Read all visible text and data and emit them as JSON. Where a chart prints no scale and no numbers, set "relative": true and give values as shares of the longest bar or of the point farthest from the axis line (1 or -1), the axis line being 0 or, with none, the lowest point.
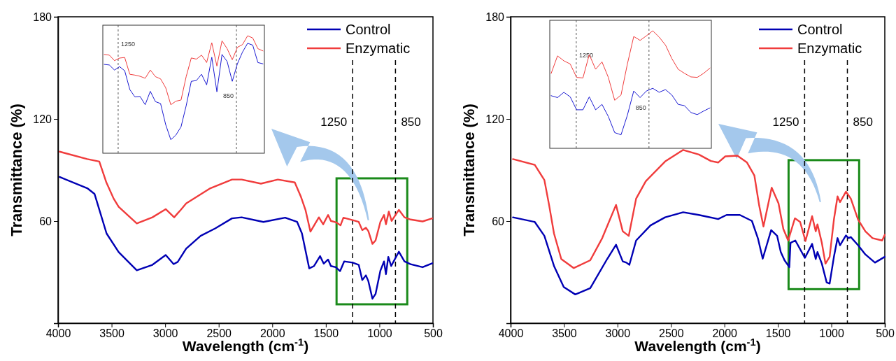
{
  "chart_data": [
    {
      "type": "line",
      "xlabel": "Wavelength (cm$^{-1}$)",
      "ylabel": "Transmittance (%)",
      "xlim": [
        4000,
        500
      ],
      "xticks": [
        4000,
        3500,
        3000,
        2500,
        2000,
        1500,
        1000,
        500
      ],
      "ylim": [
        0,
        180
      ],
      "yticks": [
        60,
        120,
        180
      ],
      "legend": "top right",
      "ref_lines": [
        {
          "axis": "x",
          "value": 1250,
          "label": "1250",
          "line_style": "dashed",
          "color": "#000000"
        },
        {
          "axis": "x",
          "value": 850,
          "label": "850",
          "line_style": "dashed",
          "color": "#000000"
        }
      ],
      "series": [
        {
          "name": "Control",
          "color": "#0000b4",
          "x": [
            3986,
            3727,
            3659,
            3547,
            3434,
            3265,
            3119,
            2995,
            2921,
            2883,
            2804,
            2669,
            2533,
            2376,
            2286,
            2083,
            1880,
            1768,
            1723,
            1655,
            1610,
            1554,
            1520,
            1479,
            1453,
            1408,
            1367,
            1329,
            1250,
            1193,
            1160,
            1126,
            1103,
            1065,
            1036,
            991,
            957,
            939,
            917,
            890,
            867,
            818,
            766,
            709,
            597,
            507
          ],
          "values": [
            85.9,
            79.3,
            75.9,
            52.7,
            41.8,
            31.1,
            34.3,
            40.1,
            34.7,
            36.0,
            43.8,
            51.3,
            55.7,
            61.6,
            62.2,
            59.5,
            62.0,
            59.5,
            52.7,
            32.2,
            33.6,
            39.4,
            35.0,
            37.4,
            33.6,
            32.9,
            30.6,
            36.3,
            35.6,
            34.3,
            25.4,
            28.1,
            24.7,
            14.4,
            17.2,
            30.8,
            36.3,
            28.8,
            39.0,
            33.6,
            36.3,
            42.0,
            36.3,
            34.7,
            32.9,
            35.2
          ]
        },
        {
          "name": "Enzymatic",
          "color": "#f03c3c",
          "x": [
            3986,
            3727,
            3615,
            3549,
            3481,
            3434,
            3265,
            3119,
            2995,
            2916,
            2849,
            2804,
            2578,
            2376,
            2286,
            2106,
            1948,
            1790,
            1734,
            1689,
            1644,
            1565,
            1525,
            1479,
            1453,
            1403,
            1363,
            1336,
            1250,
            1193,
            1160,
            1126,
            1103,
            1065,
            1036,
            991,
            957,
            939,
            912,
            886,
            818,
            766,
            709,
            597,
            507
          ],
          "values": [
            100.8,
            96.4,
            95.0,
            82.7,
            73.2,
            68.4,
            58.6,
            62.2,
            67.0,
            62.2,
            67.0,
            70.4,
            79.3,
            84.4,
            84.4,
            82.0,
            84.4,
            82.7,
            74.5,
            66.3,
            53.8,
            62.2,
            58.1,
            63.6,
            60.1,
            59.2,
            57.5,
            62.0,
            60.6,
            59.5,
            54.7,
            56.1,
            54.1,
            46.6,
            48.6,
            59.5,
            63.6,
            58.1,
            65.6,
            60.1,
            66.6,
            62.2,
            60.9,
            59.8,
            61.6
          ]
        }
      ]
    },
    {
      "type": "line",
      "relative": true,
      "annotations": [
        "1250",
        "850"
      ],
      "categories": [
        null,
        null,
        null,
        null,
        null,
        null,
        null,
        null,
        null,
        null,
        null,
        null,
        null,
        null,
        null,
        null,
        null,
        null,
        null,
        null,
        null,
        null,
        null,
        null,
        null,
        null,
        null,
        null,
        null,
        null,
        null,
        null
      ],
      "series": [
        {
          "color": "#1a1ad2",
          "values": [
            0.756,
            0.751,
            0.708,
            0.737,
            0.702,
            0.542,
            0.479,
            0.483,
            0.413,
            0.527,
            0.439,
            0.423,
            0.244,
            0.115,
            0.155,
            0.225,
            0.404,
            0.612,
            0.619,
            0.672,
            0.582,
            0.817,
            0.523,
            0.841,
            0.781,
            0.612,
            0.761,
            0.861,
            0.936,
            0.92,
            0.772,
            0.761
          ]
        },
        {
          "color": "#f03c3c",
          "values": [
            0.841,
            0.835,
            0.788,
            0.81,
            0.815,
            0.672,
            0.665,
            0.655,
            0.638,
            0.708,
            0.652,
            0.633,
            0.558,
            0.413,
            0.443,
            0.453,
            0.652,
            0.811,
            0.801,
            0.835,
            0.772,
            0.941,
            0.742,
            0.957,
            0.89,
            0.796,
            0.901,
            0.925,
            1.0,
            0.981,
            0.89,
            0.871
          ]
        }
      ]
    },
    {
      "type": "line",
      "xlabel": "Wavelength (cm$^{-1}$)",
      "ylabel": "Transmittance (%)",
      "xlim": [
        4000,
        500
      ],
      "xticks": [
        4000,
        3500,
        3000,
        2500,
        2000,
        1500,
        1000,
        500
      ],
      "ylim": [
        0,
        180
      ],
      "yticks": [
        60,
        120,
        180
      ],
      "legend": "top right",
      "ref_lines": [
        {
          "axis": "x",
          "value": 1250,
          "label": "1250",
          "line_style": "dashed",
          "color": "#000000"
        },
        {
          "axis": "x",
          "value": 850,
          "label": "850",
          "line_style": "dashed",
          "color": "#000000"
        }
      ],
      "series": [
        {
          "name": "Control",
          "color": "#0000b4",
          "x": [
            3978,
            3774,
            3684,
            3594,
            3503,
            3395,
            3255,
            3097,
            3014,
            2951,
            2917,
            2889,
            2826,
            2691,
            2555,
            2386,
            2239,
            2059,
            1980,
            1856,
            1743,
            1687,
            1642,
            1563,
            1507,
            1473,
            1438,
            1393,
            1382,
            1337,
            1247,
            1180,
            1146,
            1130,
            1089,
            1044,
            1016,
            976,
            942,
            919,
            863,
            840,
            818,
            750,
            682,
            592,
            501
          ],
          "values": [
            62.2,
            59.5,
            51.3,
            33.6,
            21.3,
            16.9,
            20.6,
            37.7,
            46.1,
            36.3,
            35.6,
            34.3,
            48.6,
            57.5,
            62.2,
            65.2,
            63.6,
            61.2,
            63.6,
            63.6,
            60.1,
            49.9,
            37.9,
            54.7,
            51.3,
            41.8,
            37.0,
            32.9,
            47.2,
            48.6,
            38.4,
            46.6,
            37.7,
            41.8,
            35.0,
            24.0,
            23.3,
            39.0,
            50.0,
            45.8,
            51.6,
            50.0,
            50.6,
            45.8,
            40.4,
            35.6,
            39.0
          ]
        },
        {
          "name": "Enzymatic",
          "color": "#f03c3c",
          "x": [
            3978,
            3774,
            3684,
            3639,
            3594,
            3526,
            3409,
            3255,
            3143,
            3014,
            2951,
            2895,
            2826,
            2736,
            2555,
            2386,
            2239,
            2127,
            2059,
            1992,
            1879,
            1789,
            1720,
            1675,
            1635,
            1558,
            1494,
            1449,
            1404,
            1341,
            1292,
            1242,
            1180,
            1146,
            1130,
            1089,
            1055,
            1016,
            976,
            942,
            919,
            863,
            818,
            750,
            682,
            615,
            525,
            500
          ],
          "values": [
            96.4,
            93.0,
            84.1,
            69.1,
            52.7,
            37.7,
            32.4,
            37.0,
            50.0,
            69.5,
            54.0,
            51.3,
            73.2,
            83.4,
            95.0,
            101.8,
            99.1,
            95.3,
            94.4,
            98.0,
            98.4,
            94.4,
            86.8,
            69.1,
            56.8,
            79.6,
            70.4,
            55.4,
            48.6,
            61.6,
            59.5,
            48.3,
            62.9,
            54.0,
            58.1,
            47.2,
            35.0,
            39.0,
            60.9,
            74.5,
            71.1,
            77.3,
            73.2,
            60.9,
            54.0,
            50.0,
            48.6,
            52.0
          ]
        }
      ]
    },
    {
      "type": "line",
      "relative": true,
      "annotations": [
        "1250",
        "850"
      ],
      "categories": [
        null,
        null,
        null,
        null,
        null,
        null,
        null,
        null,
        null,
        null,
        null,
        null,
        null,
        null,
        null,
        null,
        null,
        null,
        null,
        null,
        null,
        null,
        null,
        null,
        null,
        null
      ],
      "series": [
        {
          "color": "#1a1ad2",
          "values": [
            0.448,
            0.432,
            0.477,
            0.438,
            0.328,
            0.328,
            0.438,
            0.328,
            0.374,
            0.271,
            0.134,
            0.115,
            0.282,
            0.488,
            0.432,
            0.488,
            0.511,
            0.477,
            0.5,
            0.454,
            0.374,
            0.363,
            0.305,
            0.287,
            0.317,
            0.344
          ]
        },
        {
          "color": "#f03c3c",
          "values": [
            0.638,
            0.787,
            0.745,
            0.718,
            0.604,
            0.599,
            0.798,
            0.673,
            0.736,
            0.604,
            0.409,
            0.454,
            0.718,
            0.952,
            0.919,
            0.958,
            1.0,
            0.947,
            0.879,
            0.764,
            0.673,
            0.638,
            0.608,
            0.604,
            0.638,
            0.683
          ]
        }
      ]
    }
  ]
}
